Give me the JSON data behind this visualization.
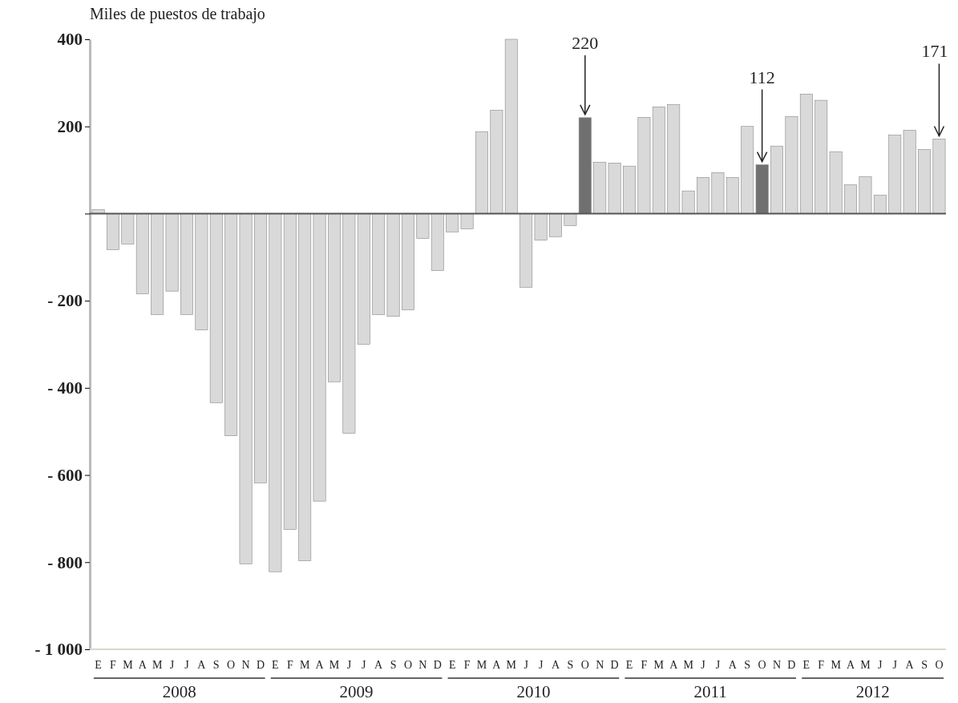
{
  "chart_data": {
    "type": "bar",
    "ylabel": "Miles de puestos de trabajo",
    "categories": [
      "E",
      "F",
      "M",
      "A",
      "M",
      "J",
      "J",
      "A",
      "S",
      "O",
      "N",
      "D",
      "E",
      "F",
      "M",
      "A",
      "M",
      "J",
      "J",
      "A",
      "S",
      "O",
      "N",
      "D",
      "E",
      "F",
      "M",
      "A",
      "M",
      "J",
      "J",
      "A",
      "S",
      "O",
      "N",
      "D",
      "E",
      "F",
      "M",
      "A",
      "M",
      "J",
      "J",
      "A",
      "S",
      "O",
      "N",
      "D",
      "E",
      "F",
      "M",
      "A",
      "M",
      "J",
      "J",
      "A",
      "S",
      "O"
    ],
    "values": [
      9,
      -83,
      -70,
      -184,
      -232,
      -178,
      -232,
      -267,
      -434,
      -510,
      -804,
      -618,
      -822,
      -725,
      -797,
      -660,
      -386,
      -504,
      -300,
      -232,
      -236,
      -221,
      -57,
      -131,
      -42,
      -35,
      188,
      237,
      400,
      -169,
      -61,
      -53,
      -28,
      220,
      118,
      116,
      109,
      221,
      245,
      250,
      52,
      83,
      94,
      83,
      200,
      112,
      155,
      223,
      274,
      260,
      142,
      66,
      85,
      42,
      180,
      191,
      147,
      171
    ],
    "colors": [
      "#d9d9d9",
      "#d9d9d9",
      "#d9d9d9",
      "#d9d9d9",
      "#d9d9d9",
      "#d9d9d9",
      "#d9d9d9",
      "#d9d9d9",
      "#d9d9d9",
      "#d9d9d9",
      "#d9d9d9",
      "#d9d9d9",
      "#d9d9d9",
      "#d9d9d9",
      "#d9d9d9",
      "#d9d9d9",
      "#d9d9d9",
      "#d9d9d9",
      "#d9d9d9",
      "#d9d9d9",
      "#d9d9d9",
      "#d9d9d9",
      "#d9d9d9",
      "#d9d9d9",
      "#d9d9d9",
      "#d9d9d9",
      "#d9d9d9",
      "#d9d9d9",
      "#d9d9d9",
      "#d9d9d9",
      "#d9d9d9",
      "#d9d9d9",
      "#d9d9d9",
      "#707070",
      "#d9d9d9",
      "#d9d9d9",
      "#d9d9d9",
      "#d9d9d9",
      "#d9d9d9",
      "#d9d9d9",
      "#d9d9d9",
      "#d9d9d9",
      "#d9d9d9",
      "#d9d9d9",
      "#d9d9d9",
      "#707070",
      "#d9d9d9",
      "#d9d9d9",
      "#d9d9d9",
      "#d9d9d9",
      "#d9d9d9",
      "#d9d9d9",
      "#d9d9d9",
      "#d9d9d9",
      "#d9d9d9",
      "#d9d9d9",
      "#d9d9d9",
      "#d9d9d9"
    ],
    "value_labels": [
      null,
      null,
      null,
      null,
      null,
      null,
      null,
      null,
      null,
      null,
      null,
      null,
      null,
      null,
      null,
      null,
      null,
      null,
      null,
      null,
      null,
      null,
      null,
      null,
      null,
      null,
      null,
      null,
      null,
      null,
      null,
      null,
      null,
      "220",
      null,
      null,
      null,
      null,
      null,
      null,
      null,
      null,
      null,
      null,
      null,
      "112",
      null,
      null,
      null,
      null,
      null,
      null,
      null,
      null,
      null,
      null,
      null,
      "171"
    ],
    "ylim": [
      -1000,
      400
    ],
    "yticks": [
      400,
      200,
      {
        "value": 0,
        "label": null
      },
      {
        "value": -200,
        "label": "- 200"
      },
      {
        "value": -400,
        "label": "- 400"
      },
      {
        "value": -600,
        "label": "- 600"
      },
      {
        "value": -800,
        "label": "- 800"
      },
      {
        "value": -1000,
        "label": "- 1 000"
      }
    ],
    "annotations": [
      "2008",
      "2009",
      "2010",
      "2011",
      "2012"
    ]
  }
}
